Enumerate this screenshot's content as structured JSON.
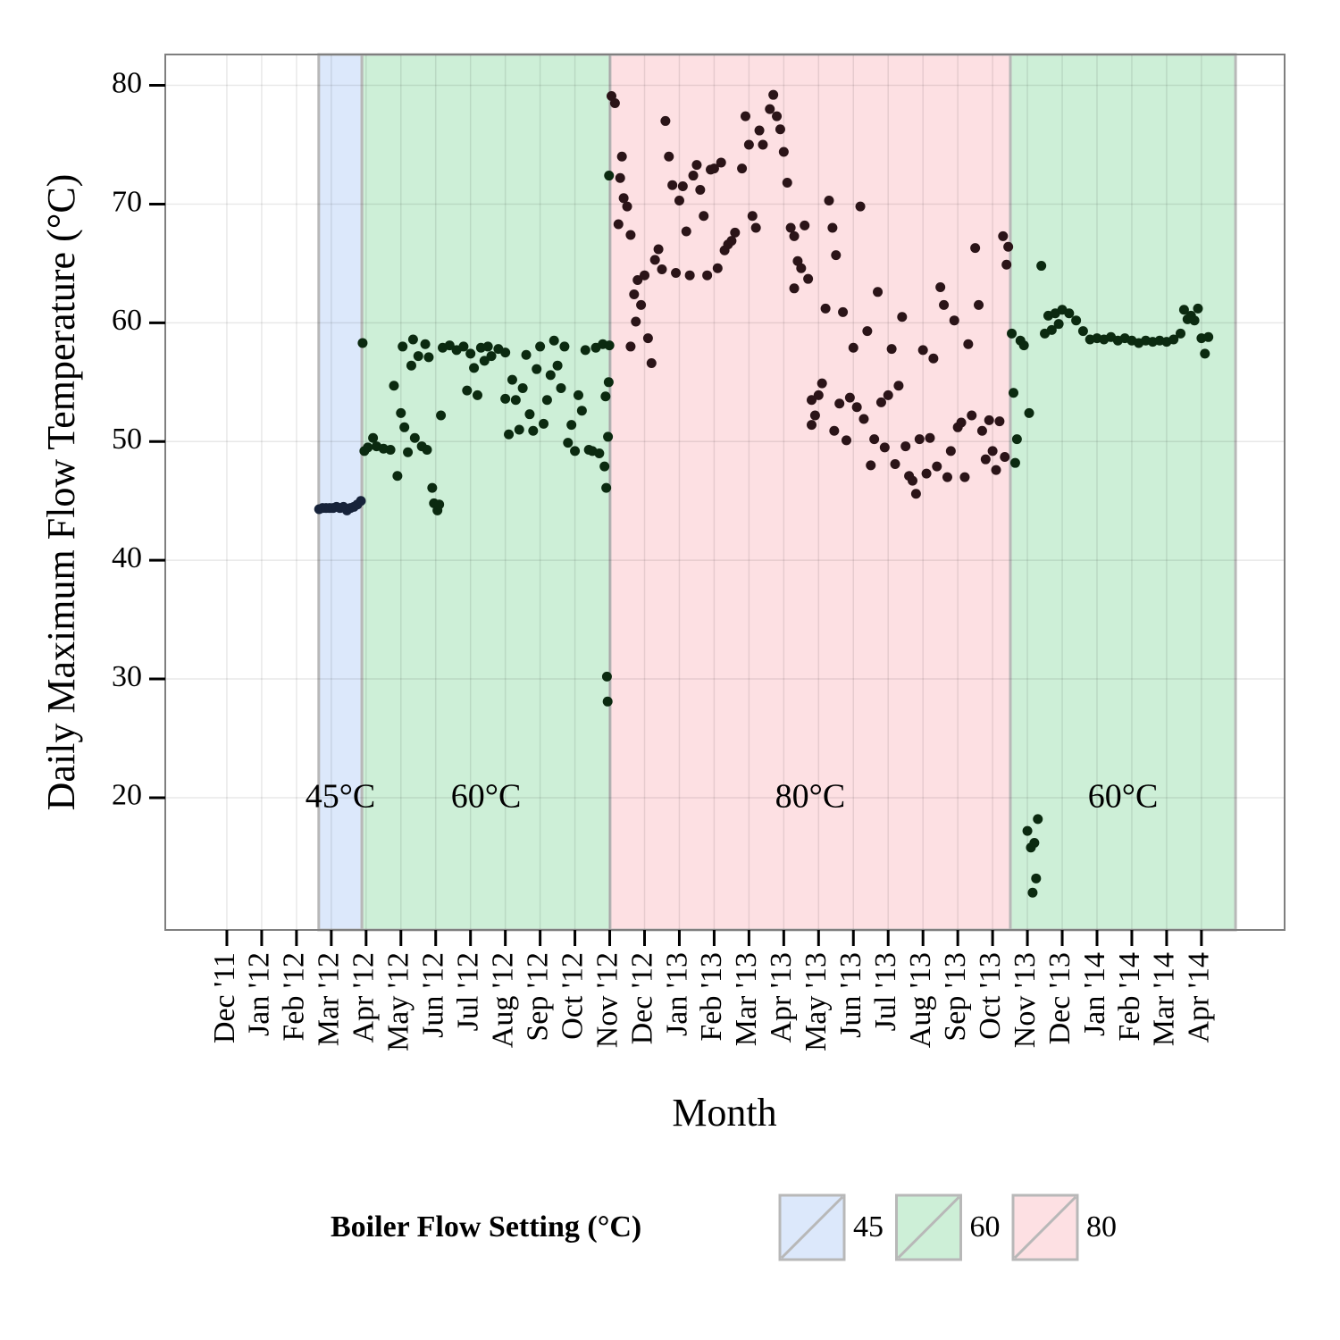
{
  "chart_data": {
    "type": "scatter",
    "x_label": "Month",
    "y_label": "Daily Maximum Flow Temperature (°C)",
    "xlim": [
      -1.77,
      30.39
    ],
    "ylim": [
      8.86,
      82.6
    ],
    "yticks": [
      20,
      30,
      40,
      50,
      60,
      70,
      80
    ],
    "xticks": [
      {
        "value": 0,
        "label": "Dec '11"
      },
      {
        "value": 1,
        "label": "Jan '12"
      },
      {
        "value": 2,
        "label": "Feb '12"
      },
      {
        "value": 3,
        "label": "Mar '12"
      },
      {
        "value": 4,
        "label": "Apr '12"
      },
      {
        "value": 5,
        "label": "May '12"
      },
      {
        "value": 6,
        "label": "Jun '12"
      },
      {
        "value": 7,
        "label": "Jul '12"
      },
      {
        "value": 8,
        "label": "Aug '12"
      },
      {
        "value": 9,
        "label": "Sep '12"
      },
      {
        "value": 10,
        "label": "Oct '12"
      },
      {
        "value": 11,
        "label": "Nov '12"
      },
      {
        "value": 12,
        "label": "Dec '12"
      },
      {
        "value": 13,
        "label": "Jan '13"
      },
      {
        "value": 14,
        "label": "Feb '13"
      },
      {
        "value": 15,
        "label": "Mar '13"
      },
      {
        "value": 16,
        "label": "Apr '13"
      },
      {
        "value": 17,
        "label": "May '13"
      },
      {
        "value": 18,
        "label": "Jun '13"
      },
      {
        "value": 19,
        "label": "Jul '13"
      },
      {
        "value": 20,
        "label": "Aug '13"
      },
      {
        "value": 21,
        "label": "Sep '13"
      },
      {
        "value": 22,
        "label": "Oct '13"
      },
      {
        "value": 23,
        "label": "Nov '13"
      },
      {
        "value": 24,
        "label": "Dec '13"
      },
      {
        "value": 25,
        "label": "Jan '14"
      },
      {
        "value": 26,
        "label": "Feb '14"
      },
      {
        "value": 27,
        "label": "Mar '14"
      },
      {
        "value": 28,
        "label": "Apr '14"
      }
    ],
    "grid": true,
    "legend": {
      "title": "Boiler Flow Setting (°C)",
      "position": "bottom",
      "entries": [
        {
          "label": "45",
          "color": "#dce8fb"
        },
        {
          "label": "60",
          "color": "#cdefd7"
        },
        {
          "label": "80",
          "color": "#fde0e3"
        }
      ]
    },
    "regions": [
      {
        "label": "45°C",
        "start": 2.64,
        "end": 3.88,
        "color": "#dce8fb"
      },
      {
        "label": "60°C",
        "start": 3.88,
        "end": 11.01,
        "color": "#cdefd7"
      },
      {
        "label": "80°C",
        "start": 11.01,
        "end": 22.51,
        "color": "#fde0e3"
      },
      {
        "label": "60°C",
        "start": 22.51,
        "end": 28.98,
        "color": "#cdefd7"
      }
    ],
    "series": [
      {
        "color": "#17233a",
        "x": [
          2.65,
          2.75,
          2.85,
          2.95,
          3.05,
          3.15,
          3.25,
          3.35,
          3.45,
          3.55,
          3.65,
          3.75,
          3.85
        ],
        "values": [
          44.3,
          44.4,
          44.4,
          44.4,
          44.4,
          44.5,
          44.4,
          44.5,
          44.2,
          44.4,
          44.5,
          44.7,
          45.0
        ]
      },
      {
        "color": "#0b2a10",
        "x": [
          3.9,
          3.95,
          4.05,
          4.2,
          4.3,
          4.5,
          4.7,
          4.8,
          4.9,
          5.0,
          5.05,
          5.1,
          5.2,
          5.3,
          5.35,
          5.4,
          5.5,
          5.6,
          5.7,
          5.75,
          5.8,
          5.9,
          5.95,
          6.05,
          6.1,
          6.15,
          6.2,
          6.4,
          6.6,
          6.8,
          6.9,
          7.0,
          7.1,
          7.2,
          7.3,
          7.4,
          7.5,
          7.6,
          7.8,
          8.0,
          8.0,
          8.1,
          8.2,
          8.3,
          8.4,
          8.5,
          8.6,
          8.7,
          8.8,
          8.9,
          9.0,
          9.1,
          9.2,
          9.3,
          9.4,
          9.5,
          9.6,
          9.7,
          9.8,
          9.9,
          10.0,
          10.1,
          10.2,
          10.3,
          10.4,
          10.5,
          10.6,
          10.7,
          10.8,
          10.85,
          10.88,
          10.9,
          10.92,
          10.94,
          10.95,
          10.97,
          10.98,
          10.99
        ],
        "values": [
          58.3,
          49.2,
          49.5,
          50.3,
          49.6,
          49.4,
          49.3,
          54.7,
          47.1,
          52.4,
          58,
          51.2,
          49.1,
          56.4,
          58.6,
          50.3,
          57.2,
          49.6,
          58.2,
          49.3,
          57.1,
          46.1,
          44.8,
          44.2,
          44.7,
          52.2,
          57.9,
          58.1,
          57.7,
          58,
          54.3,
          57.4,
          56.2,
          53.9,
          57.9,
          56.8,
          58,
          57.2,
          57.8,
          57.5,
          53.6,
          50.6,
          55.2,
          53.5,
          51,
          54.5,
          57.3,
          52.3,
          50.9,
          56.1,
          58,
          51.5,
          53.5,
          55.6,
          58.5,
          56.4,
          54.5,
          58,
          49.9,
          51.4,
          49.2,
          53.9,
          52.6,
          57.7,
          49.3,
          49.2,
          57.9,
          49,
          58.2,
          47.9,
          53.8,
          46.1,
          30.2,
          28.1,
          50.4,
          55,
          72.4,
          58.1
        ]
      },
      {
        "color": "#2b1418",
        "x": [
          11.05,
          11.15,
          11.25,
          11.3,
          11.35,
          11.4,
          11.5,
          11.6,
          11.6,
          11.7,
          11.75,
          11.8,
          11.9,
          12.0,
          12.1,
          12.2,
          12.3,
          12.4,
          12.5,
          12.6,
          12.7,
          12.8,
          12.9,
          13.0,
          13.1,
          13.2,
          13.3,
          13.4,
          13.5,
          13.6,
          13.7,
          13.8,
          13.9,
          14.0,
          14.1,
          14.2,
          14.3,
          14.4,
          14.5,
          14.6,
          14.8,
          14.9,
          15.0,
          15.1,
          15.2,
          15.3,
          15.4,
          15.6,
          15.7,
          15.8,
          15.9,
          16.0,
          16.1,
          16.2,
          16.3,
          16.3,
          16.4,
          16.5,
          16.6,
          16.7,
          16.8,
          16.9,
          16.8,
          17.0,
          17.1,
          17.2,
          17.3,
          17.4,
          17.45,
          17.5,
          17.6,
          17.7,
          17.8,
          17.9,
          18.0,
          18.1,
          18.2,
          18.3,
          18.4,
          18.5,
          18.6,
          18.7,
          18.8,
          18.9,
          19.0,
          19.1,
          19.2,
          19.3,
          19.4,
          19.5,
          19.6,
          19.7,
          19.8,
          19.9,
          20.0,
          20.1,
          20.2,
          20.3,
          20.4,
          20.5,
          20.6,
          20.7,
          20.8,
          20.9,
          21.0,
          21.1,
          21.2,
          21.3,
          21.4,
          21.5,
          21.6,
          21.7,
          21.8,
          21.9,
          22.0,
          22.1,
          22.2,
          22.3,
          22.35,
          22.4,
          22.45
        ],
        "values": [
          79.1,
          78.5,
          68.3,
          72.2,
          74,
          70.5,
          69.8,
          67.4,
          58,
          62.4,
          60.1,
          63.6,
          61.5,
          64,
          58.7,
          56.6,
          65.3,
          66.2,
          64.5,
          77,
          74,
          71.6,
          64.2,
          70.3,
          71.5,
          67.7,
          64,
          72.4,
          73.3,
          71.2,
          69,
          64,
          72.9,
          73,
          64.6,
          73.5,
          66.1,
          66.6,
          66.9,
          67.6,
          73,
          77.4,
          75,
          69,
          68,
          76.2,
          75,
          78,
          79.2,
          77.4,
          76.3,
          74.4,
          71.8,
          68,
          62.9,
          67.3,
          65.2,
          64.6,
          68.2,
          63.7,
          53.5,
          52.2,
          51.4,
          53.9,
          54.9,
          61.2,
          70.3,
          68,
          50.9,
          65.7,
          53.2,
          60.9,
          50.1,
          53.7,
          57.9,
          52.9,
          69.8,
          51.9,
          59.3,
          48,
          50.2,
          62.6,
          53.3,
          49.5,
          53.9,
          57.8,
          48.1,
          54.7,
          60.5,
          49.6,
          47.1,
          46.7,
          45.6,
          50.2,
          57.7,
          47.3,
          50.3,
          57,
          47.9,
          63,
          61.5,
          47,
          49.2,
          60.2,
          51.2,
          51.6,
          47,
          58.2,
          52.2,
          66.3,
          61.5,
          50.9,
          48.5,
          51.8,
          49.2,
          47.6,
          51.7,
          67.3,
          48.7,
          64.9,
          66.4
        ]
      },
      {
        "color": "#0b2a10",
        "x": [
          22.55,
          22.6,
          22.65,
          22.7,
          22.8,
          22.9,
          23.0,
          23.05,
          23.1,
          23.15,
          23.2,
          23.25,
          23.3,
          23.4,
          23.5,
          23.6,
          23.7,
          23.8,
          23.9,
          24.0,
          24.2,
          24.4,
          24.6,
          24.8,
          25.0,
          25.2,
          25.4,
          25.6,
          25.8,
          26.0,
          26.2,
          26.4,
          26.6,
          26.8,
          27.0,
          27.2,
          27.4,
          27.5,
          27.6,
          27.7,
          27.8,
          27.9,
          28.0,
          28.1,
          28.2
        ],
        "values": [
          59.1,
          54.1,
          48.2,
          50.2,
          58.5,
          58.1,
          17.2,
          52.4,
          15.8,
          12,
          16.2,
          13.2,
          18.2,
          64.8,
          59.1,
          60.6,
          59.4,
          60.8,
          59.9,
          61.1,
          60.8,
          60.2,
          59.3,
          58.6,
          58.7,
          58.6,
          58.8,
          58.5,
          58.7,
          58.5,
          58.3,
          58.5,
          58.4,
          58.5,
          58.4,
          58.6,
          59.1,
          61.1,
          60.3,
          60.6,
          60.2,
          61.2,
          58.7,
          57.4,
          58.8
        ]
      }
    ]
  }
}
